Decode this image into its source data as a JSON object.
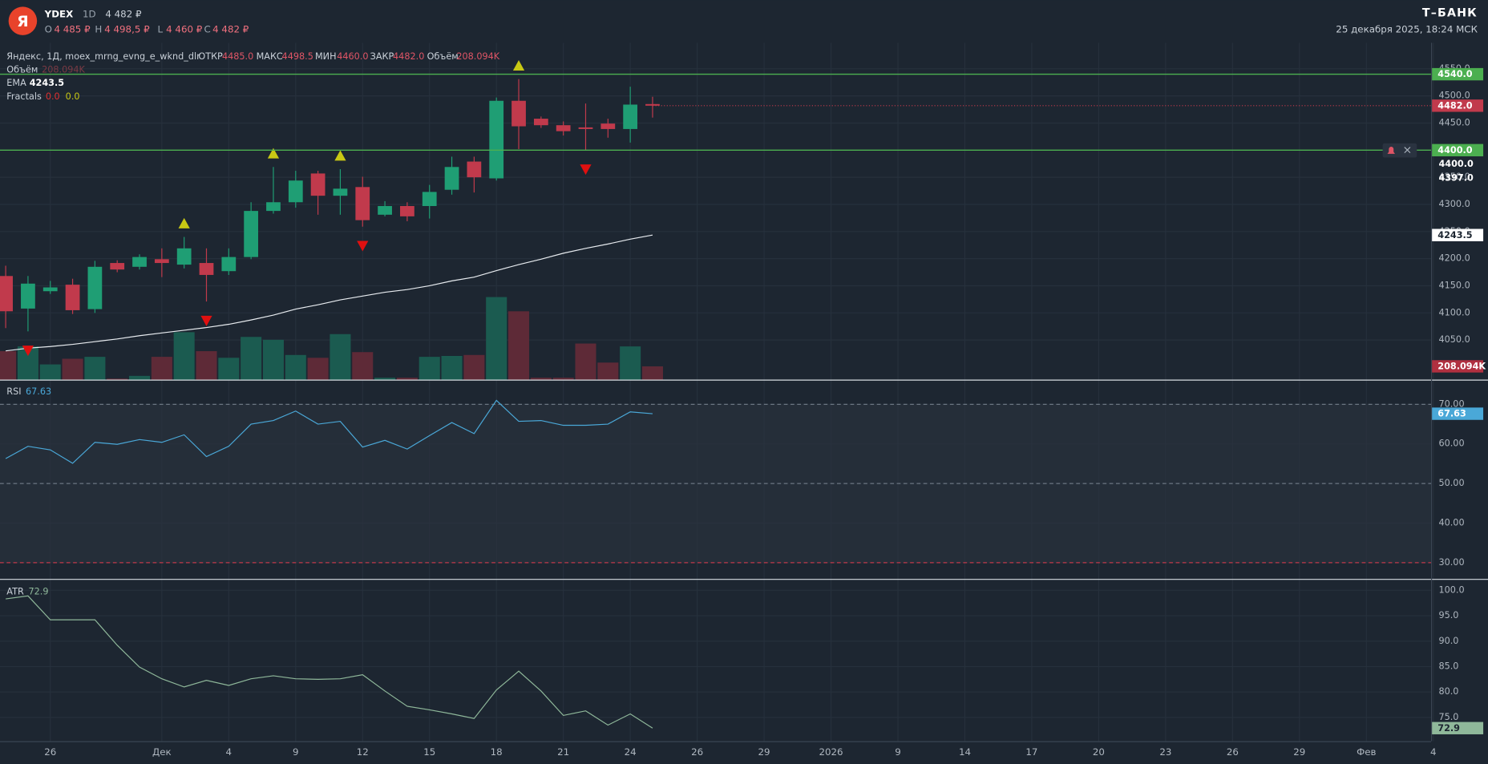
{
  "header": {
    "logo": "Я",
    "ticker": "YDEX",
    "interval": "1D",
    "price": "4 482 ₽",
    "ohlc": [
      {
        "key": "O",
        "value": "4 485 ₽"
      },
      {
        "key": "H",
        "value": "4 498,5 ₽"
      },
      {
        "key": "L",
        "value": "4 460 ₽"
      },
      {
        "key": "C",
        "value": "4 482 ₽"
      }
    ],
    "brand": "Т–БАНК",
    "datetime": "25 декабря 2025, 18:24 МСК"
  },
  "chart_data": [
    {
      "type": "candlestick",
      "title": "Яндекс, 1Д, moex_mrng_evng_e_wknd_dlr",
      "legend": [
        {
          "key": "ОТКР",
          "value": "4485.0"
        },
        {
          "key": "МАКС",
          "value": "4498.5"
        },
        {
          "key": "МИН",
          "value": "4460.0"
        },
        {
          "key": "ЗАКР",
          "value": "4482.0"
        }
      ],
      "colors": {
        "up": "#1f9e74",
        "down": "#c13a4c"
      },
      "open": [
        4168,
        4108,
        4140,
        4152,
        4107,
        4192,
        4185,
        4199,
        4189,
        4192,
        4177,
        4203,
        4288,
        4304,
        4357,
        4316,
        4332,
        4281,
        4297,
        4297,
        4327,
        4379,
        4348,
        4491,
        4458,
        4446,
        4442,
        4449,
        4439,
        4485
      ],
      "high": [
        4187,
        4168,
        4159,
        4163,
        4196,
        4197,
        4208,
        4219,
        4240,
        4219,
        4219,
        4304,
        4369,
        4362,
        4362,
        4365,
        4351,
        4306,
        4304,
        4336,
        4388,
        4388,
        4497,
        4531,
        4462,
        4453,
        4486,
        4458,
        4517,
        4498.5
      ],
      "low": [
        4072,
        4066,
        4135,
        4098,
        4100,
        4175,
        4180,
        4166,
        4182,
        4121,
        4170,
        4199,
        4283,
        4294,
        4281,
        4281,
        4259,
        4278,
        4269,
        4274,
        4318,
        4322,
        4344,
        4402,
        4441,
        4427,
        4400,
        4423,
        4414,
        4460
      ],
      "close": [
        4103,
        4154,
        4147,
        4105,
        4185,
        4180,
        4203,
        4192,
        4219,
        4170,
        4203,
        4288,
        4304,
        4344,
        4316,
        4329,
        4271,
        4297,
        4278,
        4323,
        4369,
        4350,
        4491,
        4444,
        4446,
        4435,
        4439,
        4439,
        4484,
        4482
      ],
      "close_label": "4482.0",
      "xlim": [
        -0.255,
        63.9
      ],
      "xticks": [
        {
          "value": 2,
          "label": "26"
        },
        {
          "value": 7,
          "label": "Дек"
        },
        {
          "value": 10,
          "label": "4"
        },
        {
          "value": 13,
          "label": "9"
        },
        {
          "value": 16,
          "label": "12"
        },
        {
          "value": 19,
          "label": "15"
        },
        {
          "value": 22,
          "label": "18"
        },
        {
          "value": 25,
          "label": "21"
        },
        {
          "value": 28,
          "label": "24"
        },
        {
          "value": 31,
          "label": "26"
        },
        {
          "value": 34,
          "label": "29"
        },
        {
          "value": 37,
          "label": "2026"
        },
        {
          "value": 40,
          "label": "9"
        },
        {
          "value": 43,
          "label": "14"
        },
        {
          "value": 46,
          "label": "17"
        },
        {
          "value": 49,
          "label": "20"
        },
        {
          "value": 52,
          "label": "23"
        },
        {
          "value": 55,
          "label": "26"
        },
        {
          "value": 58,
          "label": "29"
        },
        {
          "value": 61,
          "label": "Фев"
        },
        {
          "value": 64,
          "label": "4"
        }
      ],
      "ylim": [
        3977,
        4598
      ],
      "yticks": [
        {
          "value": 4050,
          "label": "4050.0"
        },
        {
          "value": 4100,
          "label": "4100.0"
        },
        {
          "value": 4150,
          "label": "4150.0"
        },
        {
          "value": 4200,
          "label": "4200.0"
        },
        {
          "value": 4250,
          "label": "4250.0"
        },
        {
          "value": 4300,
          "label": "4300.0"
        },
        {
          "value": 4350,
          "label": "4350.0"
        },
        {
          "value": 4400,
          "label": "4400.0"
        },
        {
          "value": 4450,
          "label": "4450.0"
        },
        {
          "value": 4500,
          "label": "4500.0"
        },
        {
          "value": 4550,
          "label": "4550.0"
        }
      ],
      "volume": {
        "name": "Объём",
        "last_label": "208.094K",
        "ylim": [
          0,
          5275
        ],
        "colors": {
          "up": "#1b5b50",
          "down": "#5e2a37"
        },
        "values": [
          446,
          520,
          238,
          327,
          357,
          15,
          59,
          357,
          743,
          446,
          342,
          669,
          624,
          386,
          342,
          713,
          431,
          30,
          30,
          357,
          371,
          386,
          1293,
          1070,
          30,
          30,
          565,
          267,
          520,
          208.094
        ]
      },
      "ema": {
        "name": "EMA",
        "color": "#e8ecf0",
        "values": [
          4030,
          4035,
          4038,
          4042,
          4047,
          4052,
          4058,
          4063,
          4068,
          4073,
          4079,
          4087,
          4096,
          4107,
          4115,
          4124,
          4131,
          4138,
          4143,
          4150,
          4159,
          4166,
          4178,
          4189,
          4199,
          4210,
          4219,
          4227,
          4236,
          4243.5
        ]
      },
      "fractals": {
        "name": "Fractals",
        "labels": [
          "0.0",
          "0.0"
        ],
        "colors": {
          "up": "#c8c814",
          "down": "#e01010"
        },
        "up": [
          8,
          12,
          15,
          23
        ],
        "down": [
          1,
          9,
          16,
          26
        ]
      },
      "levels": [
        {
          "value": 4540,
          "label": "4540.0",
          "color": "#4caf50"
        },
        {
          "value": 4400,
          "label": "4400.0",
          "color": "#4caf50"
        }
      ],
      "axis_notes": [
        "4400.0",
        "4397.0"
      ]
    },
    {
      "type": "line",
      "name": "RSI",
      "color": "#4aa8d8",
      "ylim": [
        25.9,
        76.0
      ],
      "yticks": [
        {
          "value": 30,
          "label": "30.00"
        },
        {
          "value": 40,
          "label": "40.00"
        },
        {
          "value": 50,
          "label": "50.00"
        },
        {
          "value": 60,
          "label": "60.00"
        },
        {
          "value": 70,
          "label": "70.00"
        }
      ],
      "bands": [
        {
          "value": 70,
          "color": "#6b7682"
        },
        {
          "value": 50,
          "color": "#6b7682"
        },
        {
          "value": 30,
          "color": "#c0394a"
        }
      ],
      "values": [
        56.3,
        59.4,
        58.5,
        55.1,
        60.4,
        59.9,
        61.1,
        60.4,
        62.3,
        56.8,
        59.4,
        65.0,
        65.9,
        68.3,
        65.0,
        65.7,
        59.2,
        60.9,
        58.7,
        62.1,
        65.4,
        62.6,
        71.0,
        65.7,
        65.9,
        64.7,
        64.7,
        65.0,
        68.1,
        67.63
      ]
    },
    {
      "type": "line",
      "name": "ATR",
      "color": "#8fb89a",
      "ylim": [
        70.34,
        102.05
      ],
      "yticks": [
        {
          "value": 75,
          "label": "75.0"
        },
        {
          "value": 80,
          "label": "80.0"
        },
        {
          "value": 85,
          "label": "85.0"
        },
        {
          "value": 90,
          "label": "90.0"
        },
        {
          "value": 95,
          "label": "95.0"
        },
        {
          "value": 100,
          "label": "100.0"
        }
      ],
      "values": [
        98.3,
        98.9,
        94.2,
        94.2,
        94.2,
        89.2,
        84.9,
        82.6,
        81.0,
        82.3,
        81.3,
        82.6,
        83.2,
        82.6,
        82.5,
        82.6,
        83.4,
        80.2,
        77.2,
        76.5,
        75.7,
        74.8,
        80.4,
        84.1,
        80.2,
        75.4,
        76.3,
        73.5,
        75.7,
        72.9
      ]
    }
  ]
}
